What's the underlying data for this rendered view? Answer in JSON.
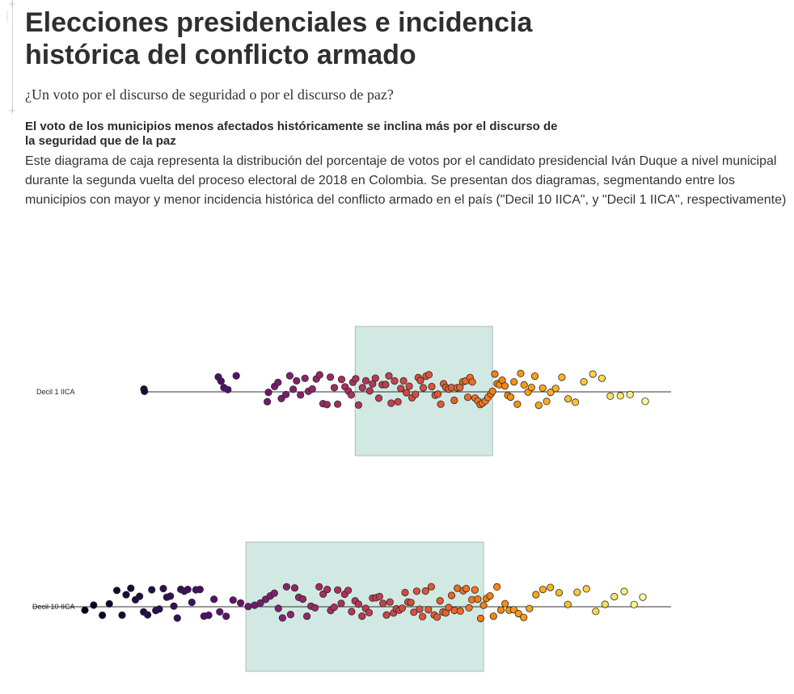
{
  "header": {
    "title": "Elecciones presidenciales e incidencia histórica del conflicto armado",
    "subtitle": "¿Un voto por el discurso de seguridad o por el discurso de paz?"
  },
  "section": {
    "heading": "El voto de los municipios menos afectados históricamente se inclina más por el discurso de la seguridad que de la paz",
    "description": "Este diagrama de caja representa la distribución del porcentaje de votos por el candidato presidencial Iván Duque a nivel municipal durante la segunda vuelta del proceso electoral de 2018 en Colombia. Se presentan dos diagramas, segmentando entre los municipios con mayor y menor incidencia histórica del conflicto armado en el país (\"Decil 10 IICA\", y \"Decil 1 IICA\", respectivamente)"
  },
  "colors": {
    "box_fill": "#d2e8e3",
    "box_stroke": "#a9bfba",
    "axis": "#333333",
    "point_stroke": "#2a2a2a"
  },
  "chart_data": {
    "type": "scatter",
    "description_kind": "boxplot with jittered points",
    "x_range_shown": [
      0.1,
      1.0
    ],
    "colormap": "inferno",
    "series": [
      {
        "name": "Decil 1 IICA",
        "box": {
          "q1": 0.475,
          "q3": 0.719
        },
        "values": [
          0.1,
          0.101,
          0.232,
          0.237,
          0.242,
          0.249,
          0.264,
          0.319,
          0.321,
          0.332,
          0.338,
          0.344,
          0.352,
          0.359,
          0.365,
          0.371,
          0.378,
          0.386,
          0.392,
          0.399,
          0.406,
          0.412,
          0.418,
          0.425,
          0.431,
          0.438,
          0.444,
          0.451,
          0.457,
          0.463,
          0.468,
          0.471,
          0.476,
          0.481,
          0.488,
          0.494,
          0.501,
          0.506,
          0.511,
          0.517,
          0.523,
          0.529,
          0.535,
          0.539,
          0.545,
          0.551,
          0.556,
          0.561,
          0.566,
          0.571,
          0.576,
          0.582,
          0.587,
          0.591,
          0.596,
          0.601,
          0.606,
          0.611,
          0.617,
          0.622,
          0.627,
          0.632,
          0.636,
          0.641,
          0.646,
          0.651,
          0.656,
          0.661,
          0.666,
          0.671,
          0.675,
          0.679,
          0.683,
          0.688,
          0.693,
          0.697,
          0.701,
          0.706,
          0.711,
          0.716,
          0.719,
          0.723,
          0.727,
          0.731,
          0.736,
          0.741,
          0.746,
          0.751,
          0.757,
          0.763,
          0.769,
          0.775,
          0.782,
          0.788,
          0.794,
          0.801,
          0.808,
          0.815,
          0.822,
          0.831,
          0.842,
          0.853,
          0.866,
          0.881,
          0.897,
          0.913,
          0.928,
          0.946,
          0.963,
          0.99
        ]
      },
      {
        "name": "Decil 10 IICA",
        "box": {
          "q1": 0.307,
          "q3": 0.716
        },
        "values": [
          0.03,
          0.045,
          0.06,
          0.072,
          0.085,
          0.094,
          0.101,
          0.109,
          0.117,
          0.124,
          0.131,
          0.138,
          0.145,
          0.152,
          0.158,
          0.165,
          0.171,
          0.177,
          0.183,
          0.189,
          0.195,
          0.201,
          0.207,
          0.214,
          0.221,
          0.228,
          0.235,
          0.243,
          0.252,
          0.262,
          0.273,
          0.285,
          0.298,
          0.311,
          0.322,
          0.332,
          0.341,
          0.349,
          0.356,
          0.363,
          0.37,
          0.377,
          0.384,
          0.391,
          0.398,
          0.405,
          0.412,
          0.419,
          0.426,
          0.433,
          0.44,
          0.447,
          0.453,
          0.459,
          0.465,
          0.471,
          0.477,
          0.483,
          0.489,
          0.495,
          0.501,
          0.507,
          0.513,
          0.519,
          0.525,
          0.531,
          0.537,
          0.543,
          0.549,
          0.555,
          0.561,
          0.566,
          0.571,
          0.576,
          0.581,
          0.586,
          0.591,
          0.596,
          0.601,
          0.606,
          0.611,
          0.616,
          0.621,
          0.626,
          0.631,
          0.636,
          0.641,
          0.646,
          0.651,
          0.656,
          0.661,
          0.666,
          0.671,
          0.676,
          0.681,
          0.686,
          0.691,
          0.696,
          0.701,
          0.706,
          0.711,
          0.716,
          0.721,
          0.727,
          0.733,
          0.739,
          0.746,
          0.753,
          0.76,
          0.768,
          0.776,
          0.785,
          0.795,
          0.806,
          0.818,
          0.831,
          0.846,
          0.861,
          0.877,
          0.893,
          0.909,
          0.925,
          0.941,
          0.958,
          0.975,
          0.99
        ]
      }
    ]
  }
}
